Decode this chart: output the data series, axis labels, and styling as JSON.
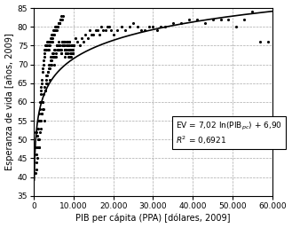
{
  "title": "",
  "xlabel": "PIB per cápita (PPA) [dólares, 2009]",
  "ylabel": "Esperanza de vida [años, 2009]",
  "xlim": [
    0,
    60000
  ],
  "ylim": [
    35,
    85
  ],
  "xticks": [
    0,
    10000,
    20000,
    30000,
    40000,
    50000,
    60000
  ],
  "yticks": [
    35,
    40,
    45,
    50,
    55,
    60,
    65,
    70,
    75,
    80,
    85
  ],
  "scatter_color": "#000000",
  "line_color": "#000000",
  "background_color": "#ffffff",
  "scatter_data_x": [
    300,
    500,
    600,
    700,
    800,
    900,
    1000,
    1100,
    1200,
    1300,
    1400,
    1500,
    1600,
    1700,
    1800,
    1900,
    2000,
    2100,
    2200,
    2300,
    2400,
    2500,
    2600,
    2700,
    2800,
    2900,
    3000,
    3100,
    3200,
    3300,
    3400,
    3500,
    3600,
    3700,
    3800,
    3900,
    4000,
    4100,
    4200,
    4300,
    4400,
    4500,
    4600,
    4700,
    4800,
    4900,
    5000,
    5100,
    5200,
    5300,
    5400,
    5500,
    5600,
    5700,
    5800,
    5900,
    6000,
    6100,
    6200,
    6300,
    6400,
    6500,
    6600,
    6700,
    6800,
    6900,
    7000,
    7100,
    7200,
    7300,
    7400,
    7500,
    7600,
    7700,
    7800,
    7900,
    8000,
    8100,
    8200,
    8300,
    8400,
    8500,
    8600,
    8700,
    8800,
    8900,
    9000,
    9100,
    9200,
    9300,
    9400,
    9500,
    9600,
    9700,
    9800,
    9900,
    10000,
    10500,
    11000,
    11500,
    12000,
    12500,
    13000,
    13500,
    14000,
    14500,
    15000,
    15500,
    16000,
    16500,
    17000,
    17500,
    18000,
    18500,
    19000,
    19500,
    20000,
    21000,
    22000,
    23000,
    24000,
    25000,
    26000,
    27000,
    28000,
    29000,
    30000,
    31000,
    32000,
    33000,
    35000,
    37000,
    39000,
    41000,
    43000,
    45000,
    47000,
    49000,
    51000,
    53000,
    55000,
    57000,
    59000,
    400,
    550,
    650,
    750,
    850,
    950,
    1050,
    1150,
    1250,
    1350,
    1450,
    1550,
    1650,
    1750,
    1850,
    1950,
    2050,
    2150,
    2250,
    2350,
    2450,
    2550,
    2650,
    2750,
    2850,
    2950,
    3050,
    3150,
    3250,
    3350,
    3450,
    3550,
    3650,
    3750,
    3850,
    3950,
    4050,
    4150,
    4250,
    4350,
    4450,
    4550,
    4650,
    4750,
    4850,
    4950,
    5050,
    5150,
    5250,
    5350,
    5450,
    5550,
    5650,
    5750,
    5850,
    5950,
    6050,
    6150,
    6250,
    6350,
    6450,
    6550,
    6650,
    6750,
    6850,
    6950,
    7050,
    7150,
    7250,
    7350,
    7450,
    7550,
    7650,
    7750,
    7850,
    7950,
    8050,
    8150,
    8250,
    8350,
    8450,
    8550,
    8650,
    8750,
    8850,
    8950,
    9050,
    9150,
    9250,
    9350,
    9450,
    9550,
    9650,
    9750,
    9850,
    9950
  ],
  "scatter_data_y": [
    48,
    52,
    42,
    44,
    53,
    45,
    55,
    50,
    50,
    48,
    48,
    55,
    52,
    55,
    53,
    57,
    57,
    60,
    60,
    58,
    58,
    62,
    55,
    64,
    63,
    63,
    65,
    66,
    67,
    65,
    67,
    68,
    68,
    69,
    70,
    69,
    66,
    71,
    72,
    70,
    70,
    71,
    72,
    73,
    73,
    72,
    74,
    72,
    70,
    72,
    74,
    72,
    73,
    75,
    75,
    74,
    74,
    75,
    76,
    74,
    75,
    75,
    74,
    74,
    74,
    73,
    73,
    76,
    75,
    75,
    75,
    76,
    75,
    76,
    72,
    74,
    74,
    74,
    76,
    74,
    73,
    73,
    75,
    75,
    75,
    76,
    76,
    74,
    72,
    72,
    74,
    74,
    73,
    73,
    75,
    73,
    75,
    77,
    76,
    75,
    77,
    76,
    78,
    77,
    79,
    78,
    78,
    79,
    79,
    78,
    80,
    79,
    79,
    80,
    80,
    79,
    78,
    79,
    80,
    79,
    80,
    81,
    80,
    79,
    79,
    80,
    80,
    79,
    80,
    80,
    81,
    81,
    82,
    82,
    81,
    82,
    82,
    82,
    80,
    82,
    84,
    76,
    76,
    41,
    52,
    46,
    48,
    51,
    53,
    50,
    53,
    55,
    57,
    60,
    58,
    62,
    64,
    63,
    66,
    65,
    68,
    69,
    71,
    70,
    73,
    72,
    74,
    75,
    74,
    75,
    74,
    76,
    75,
    76,
    74,
    75,
    76,
    74,
    75,
    76,
    77,
    76,
    77,
    78,
    76,
    78,
    77,
    79,
    78,
    79,
    78,
    80,
    79,
    79,
    80,
    80,
    80,
    79,
    80,
    80,
    81,
    81,
    81,
    81,
    81,
    82,
    82,
    83,
    82,
    76,
    82,
    83,
    76,
    76,
    75,
    75,
    74,
    74,
    73,
    73,
    75,
    75,
    75,
    76,
    76,
    74,
    72,
    72,
    74,
    74,
    73,
    73,
    75,
    73,
    75,
    74,
    74,
    73,
    75,
    74
  ],
  "fit_a": 7.02,
  "fit_b": 6.9
}
